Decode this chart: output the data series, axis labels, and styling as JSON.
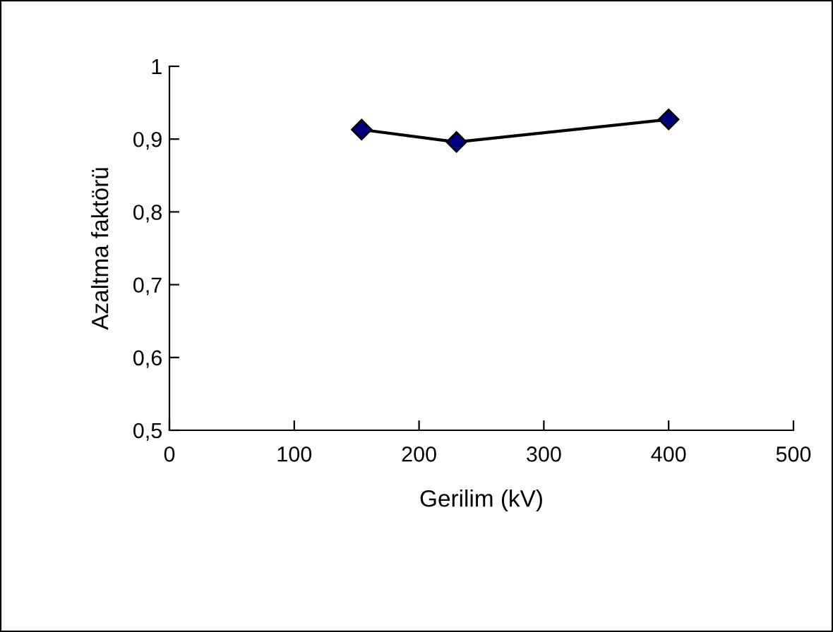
{
  "chart_data": {
    "type": "line",
    "xlabel": "Gerilim (kV)",
    "ylabel": "Azaltma faktörü",
    "x": [
      154,
      230,
      400
    ],
    "series": [
      {
        "color": "#000080",
        "values": [
          0.913,
          0.896,
          0.927
        ]
      }
    ],
    "xlim": [
      0,
      500
    ],
    "xticks": [
      0,
      100,
      200,
      300,
      400,
      500
    ],
    "ylim": [
      0.5,
      1
    ],
    "yticks": [
      {
        "value": 0.5,
        "label": "0,5"
      },
      {
        "value": 0.6,
        "label": "0,6"
      },
      {
        "value": 0.7,
        "label": "0,7"
      },
      {
        "value": 0.8,
        "label": "0,8"
      },
      {
        "value": 0.9,
        "label": "0,9"
      },
      {
        "value": 1,
        "label": "1"
      }
    ],
    "marker": "diamond",
    "line_style": "solid",
    "grid": false,
    "legend": false
  }
}
